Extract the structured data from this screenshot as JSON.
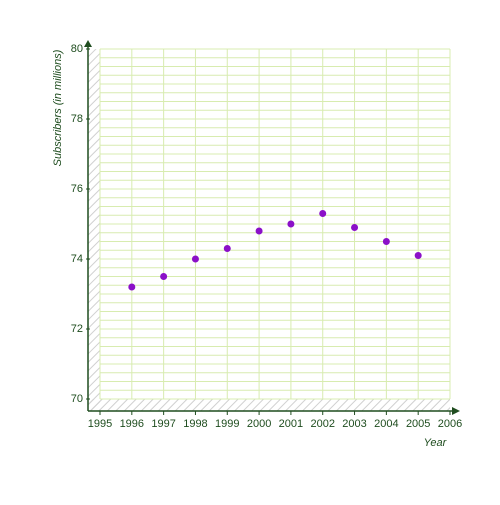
{
  "chart_data": {
    "type": "scatter",
    "x_label": "Year",
    "y_label": "Subscribers (in millions)",
    "x": [
      1996,
      1997,
      1998,
      1999,
      2000,
      2001,
      2002,
      2003,
      2004,
      2005
    ],
    "series": [
      {
        "color": "#8b10c8",
        "values": [
          73.2,
          73.5,
          74.0,
          74.3,
          74.8,
          75.0,
          75.3,
          74.9,
          74.5,
          74.1
        ]
      }
    ],
    "xlim": [
      1995,
      2006
    ],
    "xticks": [
      1995,
      1996,
      1997,
      1998,
      1999,
      2000,
      2001,
      2002,
      2003,
      2004,
      2005,
      2006
    ],
    "ylim": [
      70,
      80
    ],
    "yticks": [
      70,
      72,
      74,
      76,
      78,
      80
    ],
    "grid": true,
    "grid_color": "#d8ecb0",
    "axis_color": "#1f4d1f"
  }
}
